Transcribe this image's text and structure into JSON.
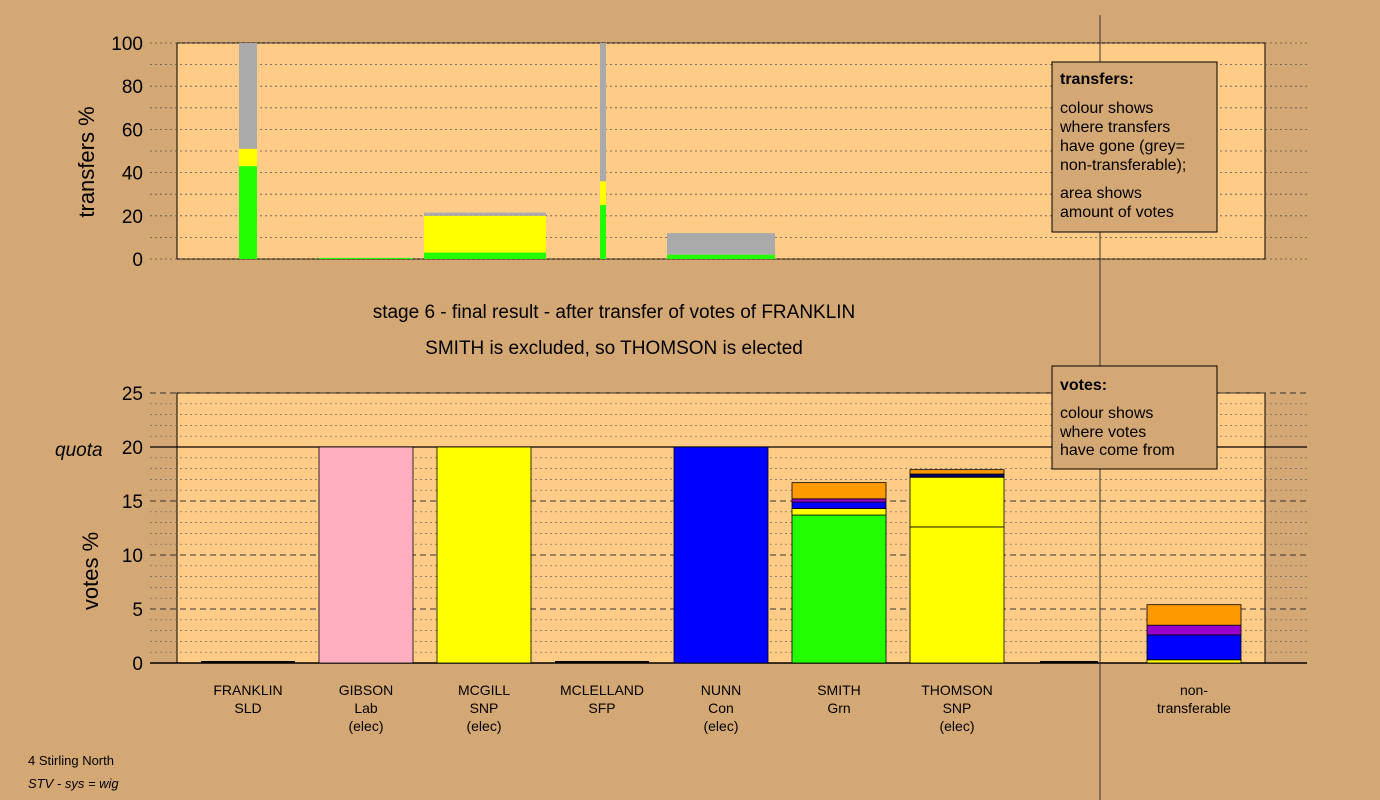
{
  "stage_title": "stage 6 - final result - after transfer of votes of FRANKLIN",
  "stage_subtitle": "SMITH is excluded, so THOMSON is elected",
  "footer": {
    "constituency": "4 Stirling North",
    "system": "STV - sys = wig"
  },
  "legends": {
    "transfers": {
      "title": "transfers:",
      "lines": [
        "colour shows",
        "where transfers",
        "have gone (grey=",
        "non-transferable);",
        "area shows",
        "amount of votes"
      ]
    },
    "votes": {
      "title": "votes:",
      "lines": [
        "colour shows",
        "where votes",
        "have come from"
      ]
    }
  },
  "colors": {
    "background": "#d4a875",
    "plot_background": "#ffcc88",
    "green": "#22ff00",
    "yellow": "#ffff00",
    "grey": "#aaaaaa",
    "pink": "#ffaec0",
    "blue": "#0000ff",
    "orange": "#ff9900",
    "purple": "#9900cc",
    "navy": "#000066"
  },
  "chart_data": [
    {
      "type": "bar",
      "ylabel": "transfers %",
      "ylim": [
        0,
        100
      ],
      "yticks": [
        0,
        20,
        40,
        60,
        80,
        100
      ],
      "legend_placement": "top-right",
      "note": "stacked transfer columns; width proportional to transferred vote share",
      "columns": [
        {
          "category": "FRANKLIN",
          "segments": [
            {
              "color": "green",
              "value": 43
            },
            {
              "color": "yellow",
              "value": 8
            },
            {
              "color": "grey",
              "value": 49
            }
          ]
        },
        {
          "category": "GIBSON",
          "segments": [
            {
              "color": "green",
              "value": 0.5
            }
          ]
        },
        {
          "category": "MCGILL",
          "segments": [
            {
              "color": "green",
              "value": 3
            },
            {
              "color": "yellow",
              "value": 17
            },
            {
              "color": "grey",
              "value": 1.5
            }
          ]
        },
        {
          "category": "MCLELLAND",
          "segments": [
            {
              "color": "green",
              "value": 25
            },
            {
              "color": "yellow",
              "value": 11
            },
            {
              "color": "grey",
              "value": 64
            }
          ]
        },
        {
          "category": "NUNN",
          "segments": [
            {
              "color": "green",
              "value": 2
            },
            {
              "color": "grey",
              "value": 10
            }
          ]
        }
      ]
    },
    {
      "type": "bar",
      "ylabel": "votes %",
      "ylim": [
        0,
        25
      ],
      "yticks": [
        0,
        5,
        10,
        15,
        20,
        25
      ],
      "quota": {
        "label": "quota",
        "value": 20
      },
      "legend_placement": "top-right",
      "categories": [
        {
          "name": "FRANKLIN",
          "party": "SLD",
          "status": ""
        },
        {
          "name": "GIBSON",
          "party": "Lab",
          "status": "(elec)"
        },
        {
          "name": "MCGILL",
          "party": "SNP",
          "status": "(elec)"
        },
        {
          "name": "MCLELLAND",
          "party": "SFP",
          "status": ""
        },
        {
          "name": "NUNN",
          "party": "Con",
          "status": "(elec)"
        },
        {
          "name": "SMITH",
          "party": "Grn",
          "status": ""
        },
        {
          "name": "THOMSON",
          "party": "SNP",
          "status": "(elec)"
        },
        {
          "name": "non-",
          "party": "transferable",
          "status": ""
        }
      ],
      "stacks": [
        {
          "category": "FRANKLIN",
          "segments": []
        },
        {
          "category": "GIBSON",
          "segments": [
            {
              "color": "pink",
              "value": 20
            }
          ]
        },
        {
          "category": "MCGILL",
          "segments": [
            {
              "color": "yellow",
              "value": 20
            }
          ]
        },
        {
          "category": "MCLELLAND",
          "segments": []
        },
        {
          "category": "NUNN",
          "segments": [
            {
              "color": "blue",
              "value": 20
            }
          ]
        },
        {
          "category": "SMITH",
          "segments": [
            {
              "color": "green",
              "value": 13.7
            },
            {
              "color": "yellow",
              "value": 0.6
            },
            {
              "color": "blue",
              "value": 0.6
            },
            {
              "color": "purple",
              "value": 0.3
            },
            {
              "color": "orange",
              "value": 1.5
            }
          ]
        },
        {
          "category": "THOMSON",
          "segments": [
            {
              "color": "yellow",
              "value": 12.6
            },
            {
              "color": "yellow",
              "value": 4.6
            },
            {
              "color": "navy",
              "value": 0.3
            },
            {
              "color": "orange",
              "value": 0.4
            }
          ]
        },
        {
          "category": "non-transferable",
          "segments": [
            {
              "color": "yellow",
              "value": 0.3
            },
            {
              "color": "blue",
              "value": 2.3
            },
            {
              "color": "purple",
              "value": 0.9
            },
            {
              "color": "orange",
              "value": 1.9
            }
          ]
        }
      ]
    }
  ]
}
